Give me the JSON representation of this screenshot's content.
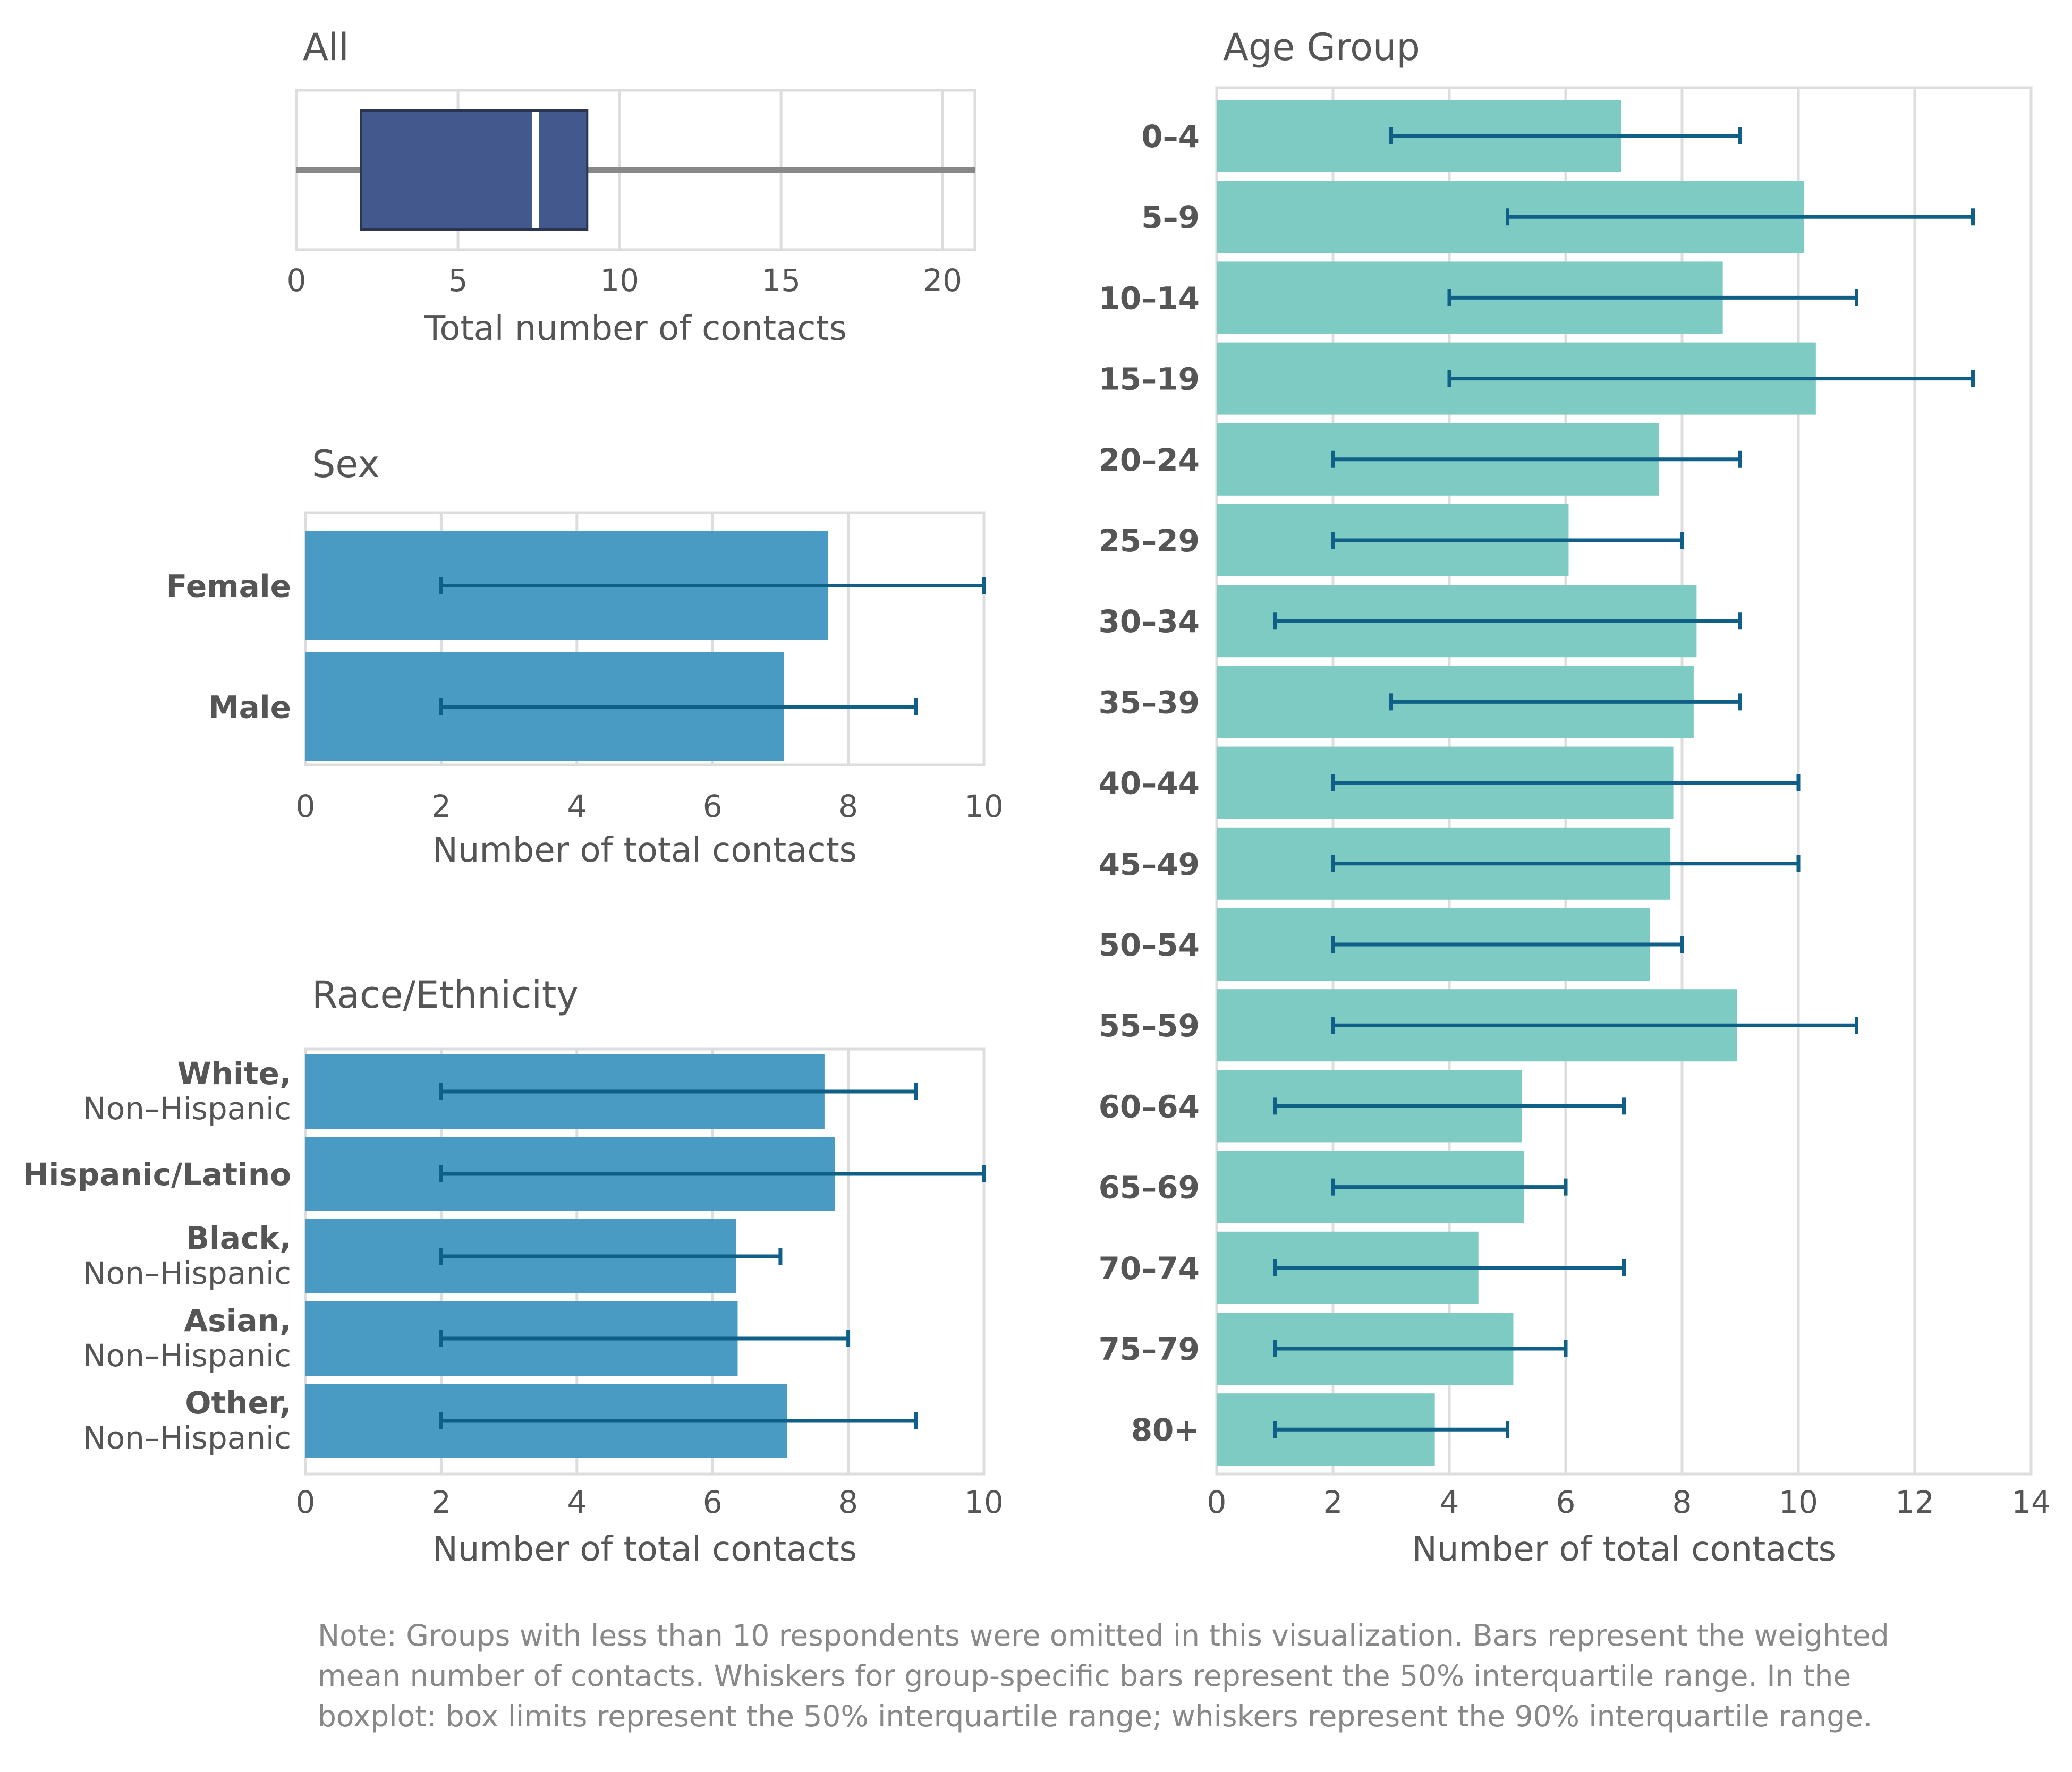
{
  "chart_data": [
    {
      "id": "all",
      "type": "boxplot",
      "title": "All",
      "xlabel": "Total number of contacts",
      "xlim": [
        0,
        21
      ],
      "xticks": [
        0,
        5,
        10,
        15,
        20
      ],
      "box": {
        "q1": 2,
        "median": 7.4,
        "q3": 9,
        "whisker_low": 0,
        "whisker_high": 21
      },
      "colors": {
        "box": "#43598e",
        "median": "#ffffff",
        "whisker": "#888888"
      }
    },
    {
      "id": "sex",
      "type": "bar",
      "orientation": "horizontal",
      "title": "Sex",
      "xlabel": "Number of total contacts",
      "xlim": [
        0,
        10
      ],
      "xticks": [
        0,
        2,
        4,
        6,
        8,
        10
      ],
      "categories": [
        {
          "label": "Female",
          "sub": "",
          "value": 7.7,
          "err_low": 2,
          "err_high": 10
        },
        {
          "label": "Male",
          "sub": "",
          "value": 7.05,
          "err_low": 2,
          "err_high": 9
        }
      ],
      "colors": {
        "bar": "#4a9bc4",
        "error": "#0f5f87"
      }
    },
    {
      "id": "race",
      "type": "bar",
      "orientation": "horizontal",
      "title": "Race/Ethnicity",
      "xlabel": "Number of total contacts",
      "xlim": [
        0,
        10
      ],
      "xticks": [
        0,
        2,
        4,
        6,
        8,
        10
      ],
      "categories": [
        {
          "label": "White,",
          "sub": "Non–Hispanic",
          "value": 7.65,
          "err_low": 2,
          "err_high": 9
        },
        {
          "label": "Hispanic/Latino",
          "sub": "",
          "value": 7.8,
          "err_low": 2,
          "err_high": 10
        },
        {
          "label": "Black,",
          "sub": "Non–Hispanic",
          "value": 6.35,
          "err_low": 2,
          "err_high": 7
        },
        {
          "label": "Asian,",
          "sub": "Non–Hispanic",
          "value": 6.37,
          "err_low": 2,
          "err_high": 8
        },
        {
          "label": "Other,",
          "sub": "Non–Hispanic",
          "value": 7.1,
          "err_low": 2,
          "err_high": 9
        }
      ],
      "colors": {
        "bar": "#4a9bc4",
        "error": "#0f5f87"
      }
    },
    {
      "id": "age",
      "type": "bar",
      "orientation": "horizontal",
      "title": "Age Group",
      "xlabel": "Number of total contacts",
      "xlim": [
        0,
        14
      ],
      "xticks": [
        0,
        2,
        4,
        6,
        8,
        10,
        12,
        14
      ],
      "categories": [
        {
          "label": "0–4",
          "sub": "",
          "value": 6.95,
          "err_low": 3,
          "err_high": 9
        },
        {
          "label": "5–9",
          "sub": "",
          "value": 10.1,
          "err_low": 5,
          "err_high": 13
        },
        {
          "label": "10–14",
          "sub": "",
          "value": 8.7,
          "err_low": 4,
          "err_high": 11
        },
        {
          "label": "15–19",
          "sub": "",
          "value": 10.3,
          "err_low": 4,
          "err_high": 13
        },
        {
          "label": "20–24",
          "sub": "",
          "value": 7.6,
          "err_low": 2,
          "err_high": 9
        },
        {
          "label": "25–29",
          "sub": "",
          "value": 6.05,
          "err_low": 2,
          "err_high": 8
        },
        {
          "label": "30–34",
          "sub": "",
          "value": 8.25,
          "err_low": 1,
          "err_high": 9
        },
        {
          "label": "35–39",
          "sub": "",
          "value": 8.2,
          "err_low": 3,
          "err_high": 9
        },
        {
          "label": "40–44",
          "sub": "",
          "value": 7.85,
          "err_low": 2,
          "err_high": 10
        },
        {
          "label": "45–49",
          "sub": "",
          "value": 7.8,
          "err_low": 2,
          "err_high": 10
        },
        {
          "label": "50–54",
          "sub": "",
          "value": 7.45,
          "err_low": 2,
          "err_high": 8
        },
        {
          "label": "55–59",
          "sub": "",
          "value": 8.95,
          "err_low": 2,
          "err_high": 11
        },
        {
          "label": "60–64",
          "sub": "",
          "value": 5.25,
          "err_low": 1,
          "err_high": 7
        },
        {
          "label": "65–69",
          "sub": "",
          "value": 5.28,
          "err_low": 2,
          "err_high": 6
        },
        {
          "label": "70–74",
          "sub": "",
          "value": 4.5,
          "err_low": 1,
          "err_high": 7
        },
        {
          "label": "75–79",
          "sub": "",
          "value": 5.1,
          "err_low": 1,
          "err_high": 6
        },
        {
          "label": "80+",
          "sub": "",
          "value": 3.75,
          "err_low": 1,
          "err_high": 5
        }
      ],
      "colors": {
        "bar": "#7ecbc4",
        "error": "#0f5f87"
      }
    }
  ],
  "note": [
    "Note: Groups with less than 10 respondents were omitted in this visualization. Bars represent the weighted",
    "mean number of contacts. Whiskers for group-specific bars represent the 50% interquartile range. In the",
    "boxplot: box limits represent the 50% interquartile range; whiskers represent the 90% interquartile range."
  ]
}
